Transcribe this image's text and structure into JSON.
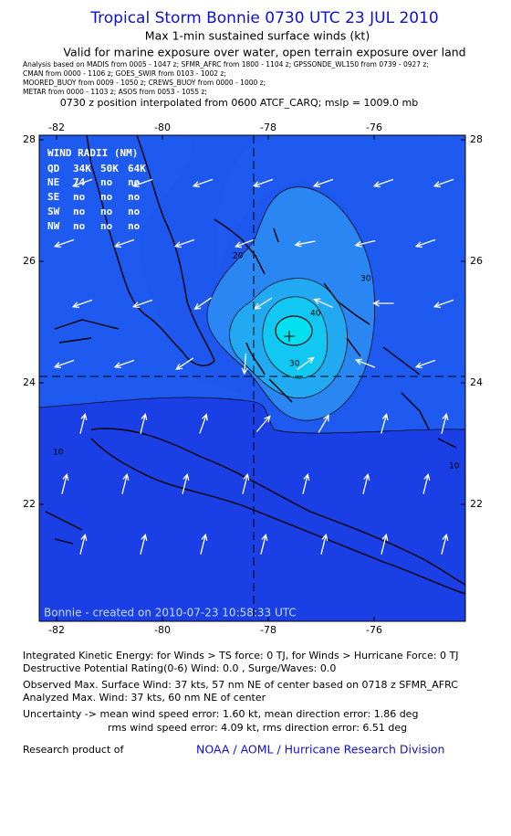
{
  "header": {
    "title": "Tropical Storm Bonnie 0730 UTC 23 JUL 2010",
    "subtitle": "Max 1-min sustained surface winds (kt)",
    "validity": "Valid for marine exposure over water, open terrain exposure over land",
    "analysis": [
      "Analysis based on   MADIS from 0005 - 1047 z;  SFMR_AFRC from 1800 - 1104 z;  GPSSONDE_WL150 from 0739 - 0927 z;",
      "CMAN from 0000 - 1106 z;  GOES_SWIR from 0103 - 1002 z;",
      "MOORED_BUOY from 0009 - 1050 z;  CREWS_BUOY from 0000 - 1000 z;",
      "METAR from 0000 - 1103 z;  ASOS from 0053 - 1055 z;"
    ],
    "position": "0730 z position interpolated from 0600 ATCF_CARQ; mslp = 1009.0 mb"
  },
  "map": {
    "lon_ticks": [
      -82,
      -80,
      -78,
      -76
    ],
    "lat_ticks": [
      22,
      24,
      26,
      28
    ],
    "wind_radii": {
      "title": "WIND RADII (NM)",
      "header": [
        "QD",
        "34K",
        "50K",
        "64K"
      ],
      "rows": [
        [
          "NE",
          74,
          "no",
          "no"
        ],
        [
          "SE",
          "no",
          "no",
          "no"
        ],
        [
          "SW",
          "no",
          "no",
          "no"
        ],
        [
          "NW",
          "no",
          "no",
          "no"
        ]
      ]
    },
    "contour_labels": [
      "20",
      "30",
      "30",
      "40",
      "10",
      "10"
    ],
    "stamp": "Bonnie - created on 2010-07-23 10:58:33 UTC"
  },
  "footer": {
    "lines": [
      "Integrated Kinetic Energy:  for Winds > TS force: 0 TJ,  for Winds > Hurricane Force: 0 TJ",
      "Destructive Potential Rating(0-6)   Wind: 0.0 , Surge/Waves: 0.0",
      "Observed Max. Surface Wind: 37 kts, 57 nm NE of center based on 0718 z SFMR_AFRC",
      "Analyzed Max. Wind: 37 kts, 60 nm NE of center",
      "Uncertainty -> mean wind speed error: 1.60 kt,   mean direction error: 1.86 deg",
      "rms wind speed error: 4.09 kt,   rms direction error: 6.51 deg"
    ],
    "credit": "Research product of",
    "link": "NOAA / AOML / Hurricane Research Division"
  }
}
